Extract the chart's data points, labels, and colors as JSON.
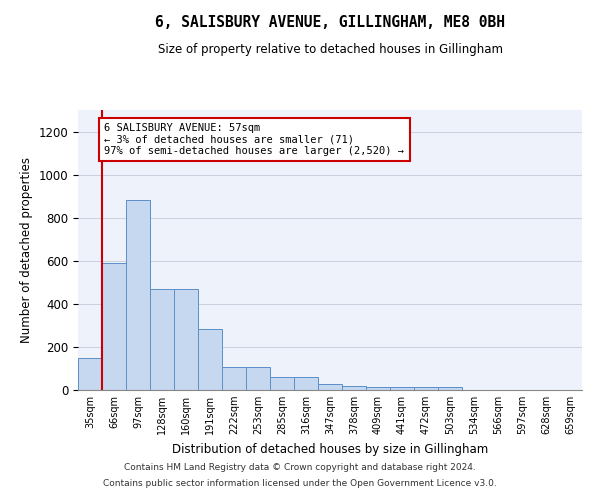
{
  "title": "6, SALISBURY AVENUE, GILLINGHAM, ME8 0BH",
  "subtitle": "Size of property relative to detached houses in Gillingham",
  "xlabel": "Distribution of detached houses by size in Gillingham",
  "ylabel": "Number of detached properties",
  "bar_color": "#c5d8f0",
  "bar_edge_color": "#5b8fc9",
  "background_color": "#eef2fb",
  "grid_color": "#c8cfe0",
  "categories": [
    "35sqm",
    "66sqm",
    "97sqm",
    "128sqm",
    "160sqm",
    "191sqm",
    "222sqm",
    "253sqm",
    "285sqm",
    "316sqm",
    "347sqm",
    "378sqm",
    "409sqm",
    "441sqm",
    "472sqm",
    "503sqm",
    "534sqm",
    "566sqm",
    "597sqm",
    "628sqm",
    "659sqm"
  ],
  "values": [
    150,
    590,
    880,
    470,
    470,
    285,
    105,
    105,
    60,
    60,
    28,
    20,
    15,
    15,
    12,
    12,
    0,
    0,
    0,
    0,
    0
  ],
  "ylim": [
    0,
    1300
  ],
  "yticks": [
    0,
    200,
    400,
    600,
    800,
    1000,
    1200
  ],
  "annotation_text": "6 SALISBURY AVENUE: 57sqm\n← 3% of detached houses are smaller (71)\n97% of semi-detached houses are larger (2,520) →",
  "annotation_box_color": "#ffffff",
  "annotation_box_edge_color": "#cc0000",
  "property_line_color": "#cc0000",
  "footer_line1": "Contains HM Land Registry data © Crown copyright and database right 2024.",
  "footer_line2": "Contains public sector information licensed under the Open Government Licence v3.0."
}
